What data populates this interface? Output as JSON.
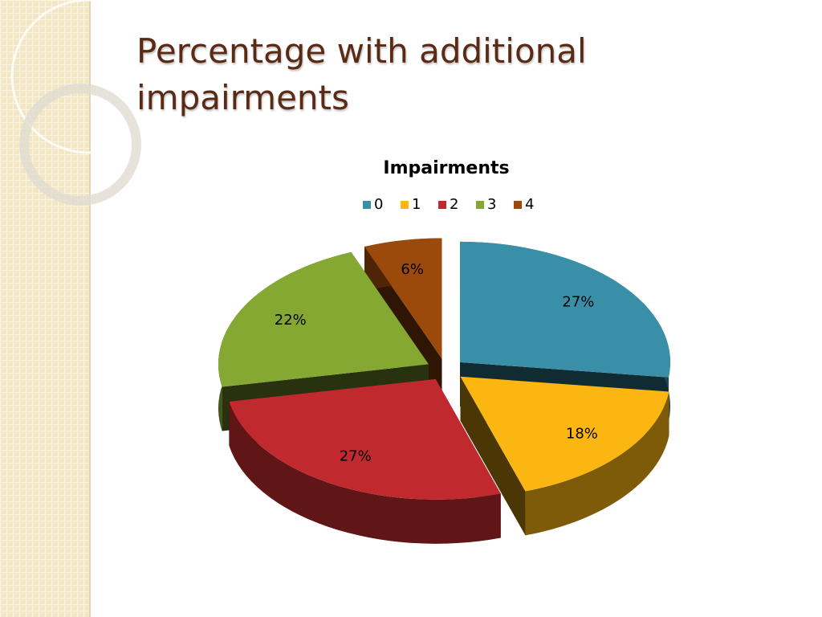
{
  "slide": {
    "title": "Percentage with additional impairments"
  },
  "chart_data": {
    "type": "pie",
    "title": "Impairments",
    "categories": [
      "0",
      "1",
      "2",
      "3",
      "4"
    ],
    "values": [
      27,
      18,
      27,
      22,
      6
    ],
    "value_labels": [
      "27%",
      "18%",
      "27%",
      "22%",
      "6%"
    ],
    "colors": [
      "#3a8fa8",
      "#fbb612",
      "#c0292e",
      "#84a832",
      "#9c4a0c"
    ],
    "legend": "top"
  }
}
